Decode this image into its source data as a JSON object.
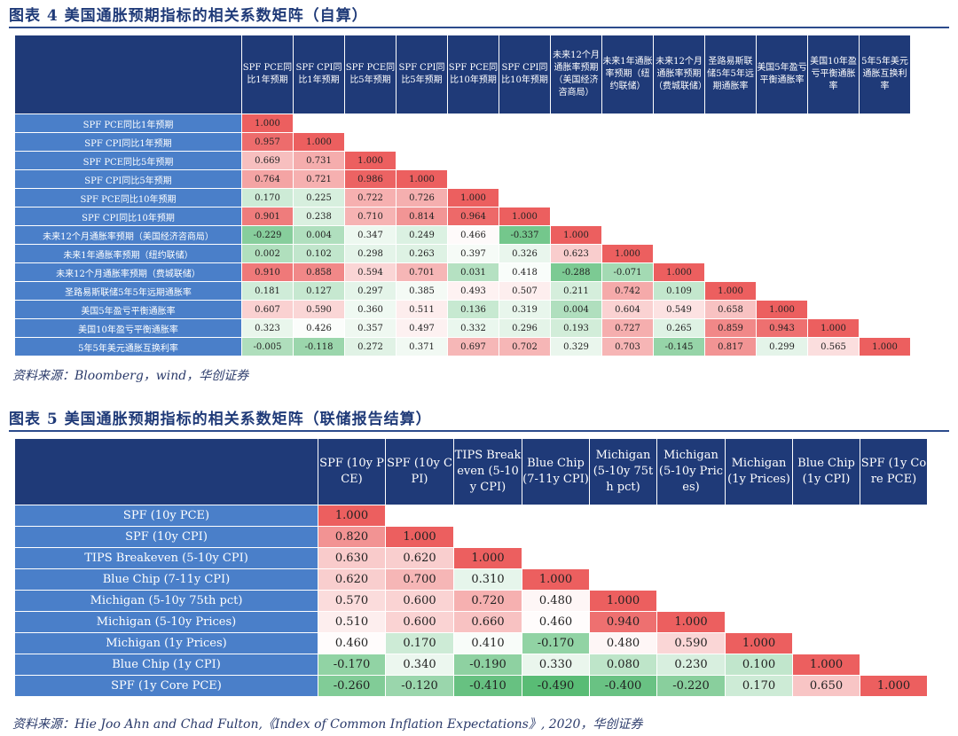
{
  "table4": {
    "title": "图表 4   美国通胀预期指标的相关系数矩阵（自算）",
    "columns": [
      "SPF PCE同比1年预期",
      "SPF CPI同比1年预期",
      "SPF PCE同比5年预期",
      "SPF CPI同比5年预期",
      "SPF PCE同比10年预期",
      "SPF CPI同比10年预期",
      "未来12个月通胀率预期（美国经济咨商局）",
      "未来1年通胀率预期（纽约联储）",
      "未来12个月通胀率预期（费城联储）",
      "圣路易斯联储5年5年远期通胀率",
      "美国5年盈亏平衡通胀率",
      "美国10年盈亏平衡通胀率",
      "5年5年美元通胀互换利率"
    ],
    "rows": [
      {
        "label": "SPF PCE同比1年预期",
        "values": [
          "1.000"
        ]
      },
      {
        "label": "SPF CPI同比1年预期",
        "values": [
          "0.957",
          "1.000"
        ]
      },
      {
        "label": "SPF PCE同比5年预期",
        "values": [
          "0.669",
          "0.731",
          "1.000"
        ]
      },
      {
        "label": "SPF CPI同比5年预期",
        "values": [
          "0.764",
          "0.721",
          "0.986",
          "1.000"
        ]
      },
      {
        "label": "SPF PCE同比10年预期",
        "values": [
          "0.170",
          "0.225",
          "0.722",
          "0.726",
          "1.000"
        ]
      },
      {
        "label": "SPF CPI同比10年预期",
        "values": [
          "0.901",
          "0.238",
          "0.710",
          "0.814",
          "0.964",
          "1.000"
        ]
      },
      {
        "label": "未来12个月通胀率预期（美国经济咨商局）",
        "values": [
          "-0.229",
          "0.004",
          "0.347",
          "0.249",
          "0.466",
          "-0.337",
          "1.000"
        ]
      },
      {
        "label": "未来1年通胀率预期（纽约联储）",
        "values": [
          "0.002",
          "0.102",
          "0.298",
          "0.263",
          "0.397",
          "0.326",
          "0.623",
          "1.000"
        ]
      },
      {
        "label": "未来12个月通胀率预期（费城联储）",
        "values": [
          "0.910",
          "0.858",
          "0.594",
          "0.701",
          "0.031",
          "0.418",
          "-0.288",
          "-0.071",
          "1.000"
        ]
      },
      {
        "label": "圣路易斯联储5年5年远期通胀率",
        "values": [
          "0.181",
          "0.127",
          "0.297",
          "0.385",
          "0.493",
          "0.507",
          "0.211",
          "0.742",
          "0.109",
          "1.000"
        ]
      },
      {
        "label": "美国5年盈亏平衡通胀率",
        "values": [
          "0.607",
          "0.590",
          "0.360",
          "0.511",
          "0.136",
          "0.319",
          "0.004",
          "0.604",
          "0.549",
          "0.658",
          "1.000"
        ]
      },
      {
        "label": "美国10年盈亏平衡通胀率",
        "values": [
          "0.323",
          "0.426",
          "0.357",
          "0.497",
          "0.332",
          "0.296",
          "0.193",
          "0.727",
          "0.265",
          "0.859",
          "0.943",
          "1.000"
        ]
      },
      {
        "label": "5年5年美元通胀互换利率",
        "values": [
          "-0.005",
          "-0.118",
          "0.272",
          "0.371",
          "0.697",
          "0.702",
          "0.329",
          "0.703",
          "-0.145",
          "0.817",
          "0.299",
          "0.565",
          "1.000"
        ]
      }
    ],
    "source": "资料来源：Bloomberg，wind，华创证券"
  },
  "table5": {
    "title": "图表 5   美国通胀预期指标的相关系数矩阵（联储报告结算）",
    "columns": [
      "SPF (10y PCE)",
      "SPF (10y CPI)",
      "TIPS Breakeven (5-10y CPI)",
      "Blue Chip (7-11y CPI)",
      "Michigan (5-10y 75th pct)",
      "Michigan (5-10y Prices)",
      "Michigan (1y Prices)",
      "Blue Chip (1y CPI)",
      "SPF (1y Core PCE)"
    ],
    "rows": [
      {
        "label": "SPF (10y PCE)",
        "values": [
          "1.000"
        ]
      },
      {
        "label": "SPF (10y CPI)",
        "values": [
          "0.820",
          "1.000"
        ]
      },
      {
        "label": "TIPS Breakeven (5-10y CPI)",
        "values": [
          "0.630",
          "0.620",
          "1.000"
        ]
      },
      {
        "label": "Blue Chip (7-11y CPI)",
        "values": [
          "0.620",
          "0.700",
          "0.310",
          "1.000"
        ]
      },
      {
        "label": "Michigan (5-10y 75th pct)",
        "values": [
          "0.570",
          "0.600",
          "0.720",
          "0.480",
          "1.000"
        ]
      },
      {
        "label": "Michigan (5-10y Prices)",
        "values": [
          "0.510",
          "0.600",
          "0.660",
          "0.460",
          "0.940",
          "1.000"
        ]
      },
      {
        "label": "Michigan (1y Prices)",
        "values": [
          "0.460",
          "0.170",
          "0.410",
          "-0.170",
          "0.480",
          "0.590",
          "1.000"
        ]
      },
      {
        "label": "Blue Chip (1y CPI)",
        "values": [
          "-0.170",
          "0.340",
          "-0.190",
          "0.330",
          "0.080",
          "0.230",
          "0.100",
          "1.000"
        ]
      },
      {
        "label": "SPF (1y Core PCE)",
        "values": [
          "-0.260",
          "-0.120",
          "-0.410",
          "-0.490",
          "-0.400",
          "-0.220",
          "0.170",
          "0.650",
          "1.000"
        ]
      }
    ],
    "source": "资料来源：Hie Joo Ahn and Chad Fulton,《Index of Common Inflation Expectations》, 2020，华创证券"
  }
}
